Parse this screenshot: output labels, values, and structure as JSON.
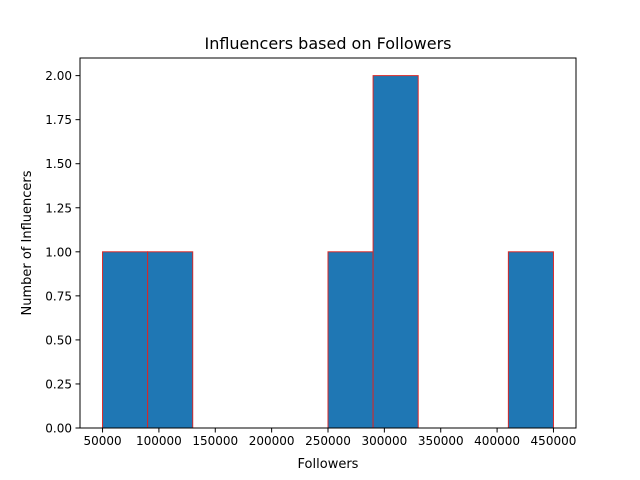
{
  "chart_data": {
    "type": "bar",
    "title": "Influencers based on Followers",
    "xlabel": "Followers",
    "ylabel": "Number of Influencers",
    "bins": [
      {
        "start": 50000,
        "end": 90000,
        "count": 1
      },
      {
        "start": 90000,
        "end": 130000,
        "count": 1
      },
      {
        "start": 130000,
        "end": 170000,
        "count": 0
      },
      {
        "start": 170000,
        "end": 210000,
        "count": 0
      },
      {
        "start": 210000,
        "end": 250000,
        "count": 0
      },
      {
        "start": 250000,
        "end": 290000,
        "count": 1
      },
      {
        "start": 290000,
        "end": 330000,
        "count": 2
      },
      {
        "start": 330000,
        "end": 370000,
        "count": 0
      },
      {
        "start": 370000,
        "end": 410000,
        "count": 0
      },
      {
        "start": 410000,
        "end": 450000,
        "count": 1
      }
    ],
    "xlim": [
      30000,
      470000
    ],
    "ylim": [
      0,
      2.1
    ],
    "x_ticks": [
      50000,
      100000,
      150000,
      200000,
      250000,
      300000,
      350000,
      400000,
      450000
    ],
    "x_tick_labels": [
      "50000",
      "100000",
      "150000",
      "200000",
      "250000",
      "300000",
      "350000",
      "400000",
      "450000"
    ],
    "y_ticks": [
      0,
      0.25,
      0.5,
      0.75,
      1.0,
      1.25,
      1.5,
      1.75,
      2.0
    ],
    "y_tick_labels": [
      "0.00",
      "0.25",
      "0.50",
      "0.75",
      "1.00",
      "1.25",
      "1.50",
      "1.75",
      "2.00"
    ],
    "grid": false,
    "legend": "none",
    "bar_color": "#1f77b4",
    "edge_color": "#d62728"
  }
}
